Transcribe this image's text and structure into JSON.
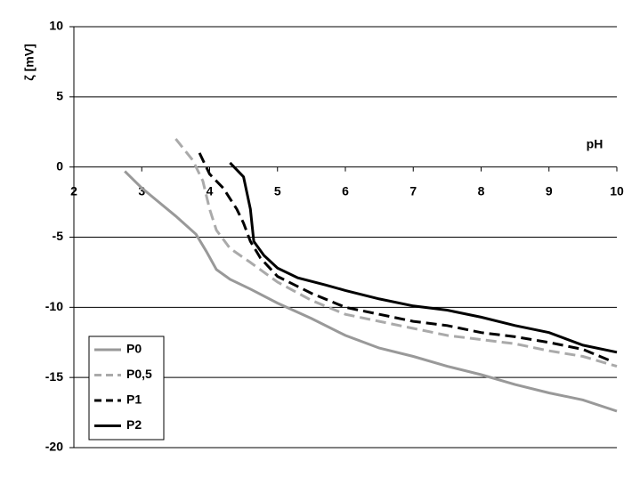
{
  "chart_data": {
    "type": "line",
    "y_label": "ζ [mV]",
    "x_label": "pH",
    "xlim": [
      2,
      10
    ],
    "xticks": [
      2,
      3,
      4,
      5,
      6,
      7,
      8,
      9,
      10
    ],
    "ylim": [
      -20,
      10
    ],
    "yticks": [
      -20,
      -15,
      -10,
      -5,
      0,
      5,
      10
    ],
    "grid": true,
    "legend": "lower left",
    "series": [
      {
        "name": "P0",
        "color": "#999999",
        "dash": "solid",
        "x": [
          2.75,
          3.0,
          3.2,
          3.5,
          3.8,
          3.95,
          4.1,
          4.3,
          4.6,
          5.0,
          5.5,
          6.0,
          6.5,
          7.0,
          7.5,
          8.0,
          8.5,
          9.0,
          9.5,
          10.0
        ],
        "values": [
          -0.3,
          -1.5,
          -2.3,
          -3.5,
          -4.8,
          -6,
          -7.3,
          -8,
          -8.7,
          -9.7,
          -10.8,
          -12,
          -12.9,
          -13.5,
          -14.2,
          -14.8,
          -15.5,
          -16.1,
          -16.6,
          -17.4
        ]
      },
      {
        "name": "P0,5",
        "color": "#aaaaaa",
        "dash": "dashed",
        "x": [
          3.5,
          3.75,
          3.9,
          4.0,
          4.1,
          4.3,
          4.6,
          5.0,
          5.5,
          6.0,
          6.5,
          7.0,
          7.5,
          8.0,
          8.5,
          9.0,
          9.5,
          10.0
        ],
        "values": [
          2.0,
          0.5,
          -1,
          -3,
          -4.5,
          -5.8,
          -6.8,
          -8.2,
          -9.5,
          -10.5,
          -11,
          -11.5,
          -12,
          -12.3,
          -12.6,
          -13.1,
          -13.5,
          -14.2
        ]
      },
      {
        "name": "P1",
        "color": "#000000",
        "dash": "dashed",
        "x": [
          3.85,
          4.0,
          4.2,
          4.4,
          4.5,
          4.6,
          4.75,
          5.0,
          5.5,
          6.0,
          6.5,
          7.0,
          7.5,
          8.0,
          8.5,
          9.0,
          9.5,
          9.9
        ],
        "values": [
          1.0,
          -0.5,
          -1.5,
          -3,
          -4,
          -5.3,
          -6.5,
          -7.8,
          -9,
          -10,
          -10.5,
          -11,
          -11.3,
          -11.8,
          -12.1,
          -12.5,
          -13,
          -13.8
        ]
      },
      {
        "name": "P2",
        "color": "#000000",
        "dash": "solid",
        "x": [
          4.3,
          4.5,
          4.6,
          4.65,
          4.8,
          5.0,
          5.3,
          5.7,
          6.0,
          6.5,
          7.0,
          7.5,
          8.0,
          8.5,
          9.0,
          9.5,
          10.0
        ],
        "values": [
          0.3,
          -0.7,
          -3,
          -5.3,
          -6.3,
          -7.2,
          -7.9,
          -8.4,
          -8.8,
          -9.4,
          -9.9,
          -10.2,
          -10.7,
          -11.3,
          -11.8,
          -12.7,
          -13.2
        ]
      }
    ]
  }
}
